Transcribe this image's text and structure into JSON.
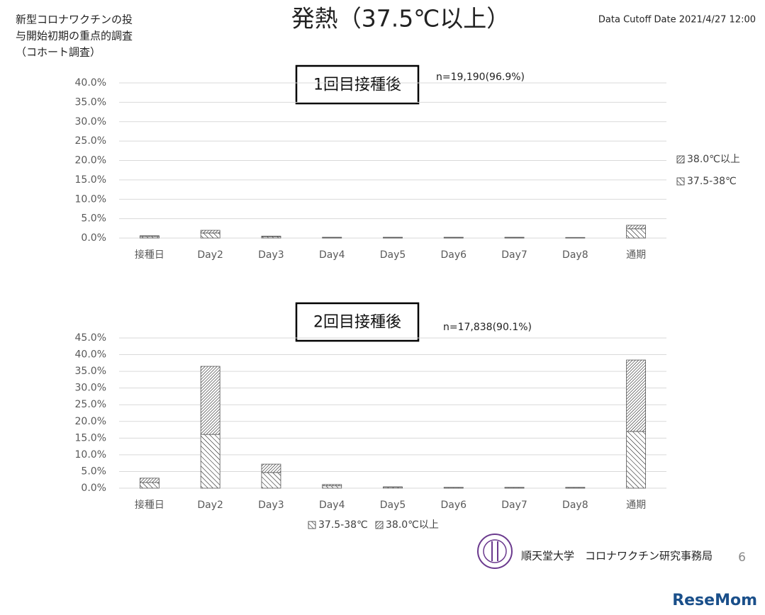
{
  "header": {
    "title": "発熱（37.5℃以上）",
    "note": [
      "新型コロナワクチンの投",
      "与開始初期の重点的調査",
      "（コホート調査）"
    ],
    "cutoff": "Data Cutoff Date 2021/4/27 12:00"
  },
  "footer": {
    "org": "順天堂大学　コロナワクチン研究事務局",
    "page": "6",
    "watermark": "ReseMom"
  },
  "chart_data": [
    {
      "type": "bar",
      "stacked": true,
      "title": "1回目接種後",
      "annotation": "n=19,190(96.9%)",
      "categories": [
        "接種日",
        "Day2",
        "Day3",
        "Day4",
        "Day5",
        "Day6",
        "Day7",
        "Day8",
        "通期"
      ],
      "series": [
        {
          "name": "37.5-38℃",
          "color": "#000000",
          "values": [
            0.4,
            1.3,
            0.35,
            0.15,
            0.15,
            0.15,
            0.15,
            0.1,
            2.4
          ]
        },
        {
          "name": "38.0℃以上",
          "color": "#000000",
          "values": [
            0.2,
            0.7,
            0.15,
            0.05,
            0.05,
            0.05,
            0.05,
            0.05,
            0.9
          ]
        }
      ],
      "ylim": [
        0,
        40
      ],
      "yticks": [
        {
          "value": 0,
          "label": "0.0%"
        },
        {
          "value": 5,
          "label": "5.0%"
        },
        {
          "value": 10,
          "label": "10.0%"
        },
        {
          "value": 15,
          "label": "15.0%"
        },
        {
          "value": 20,
          "label": "20.0%"
        },
        {
          "value": 25,
          "label": "25.0%"
        },
        {
          "value": 30,
          "label": "30.0%"
        },
        {
          "value": 35,
          "label": "35.0%"
        },
        {
          "value": 40,
          "label": "40.0%"
        }
      ],
      "grid": true,
      "legend": "right"
    },
    {
      "type": "bar",
      "stacked": true,
      "title": "2回目接種後",
      "annotation": "n=17,838(90.1%)",
      "categories": [
        "接種日",
        "Day2",
        "Day3",
        "Day4",
        "Day5",
        "Day6",
        "Day7",
        "Day8",
        "通期"
      ],
      "series": [
        {
          "name": "37.5-38℃",
          "color": "#000000",
          "values": [
            1.7,
            16.1,
            4.7,
            0.7,
            0.3,
            0.2,
            0.2,
            0.2,
            17.0
          ]
        },
        {
          "name": "38.0℃以上",
          "color": "#000000",
          "values": [
            1.3,
            20.4,
            2.5,
            0.4,
            0.1,
            0.05,
            0.05,
            0.05,
            21.4
          ]
        }
      ],
      "ylim": [
        0,
        45
      ],
      "yticks": [
        {
          "value": 0,
          "label": "0.0%"
        },
        {
          "value": 5,
          "label": "5.0%"
        },
        {
          "value": 10,
          "label": "10.0%"
        },
        {
          "value": 15,
          "label": "15.0%"
        },
        {
          "value": 20,
          "label": "20.0%"
        },
        {
          "value": 25,
          "label": "25.0%"
        },
        {
          "value": 30,
          "label": "30.0%"
        },
        {
          "value": 35,
          "label": "35.0%"
        },
        {
          "value": 40,
          "label": "40.0%"
        },
        {
          "value": 45,
          "label": "45.0%"
        }
      ],
      "grid": true,
      "legend": "bottom"
    }
  ]
}
